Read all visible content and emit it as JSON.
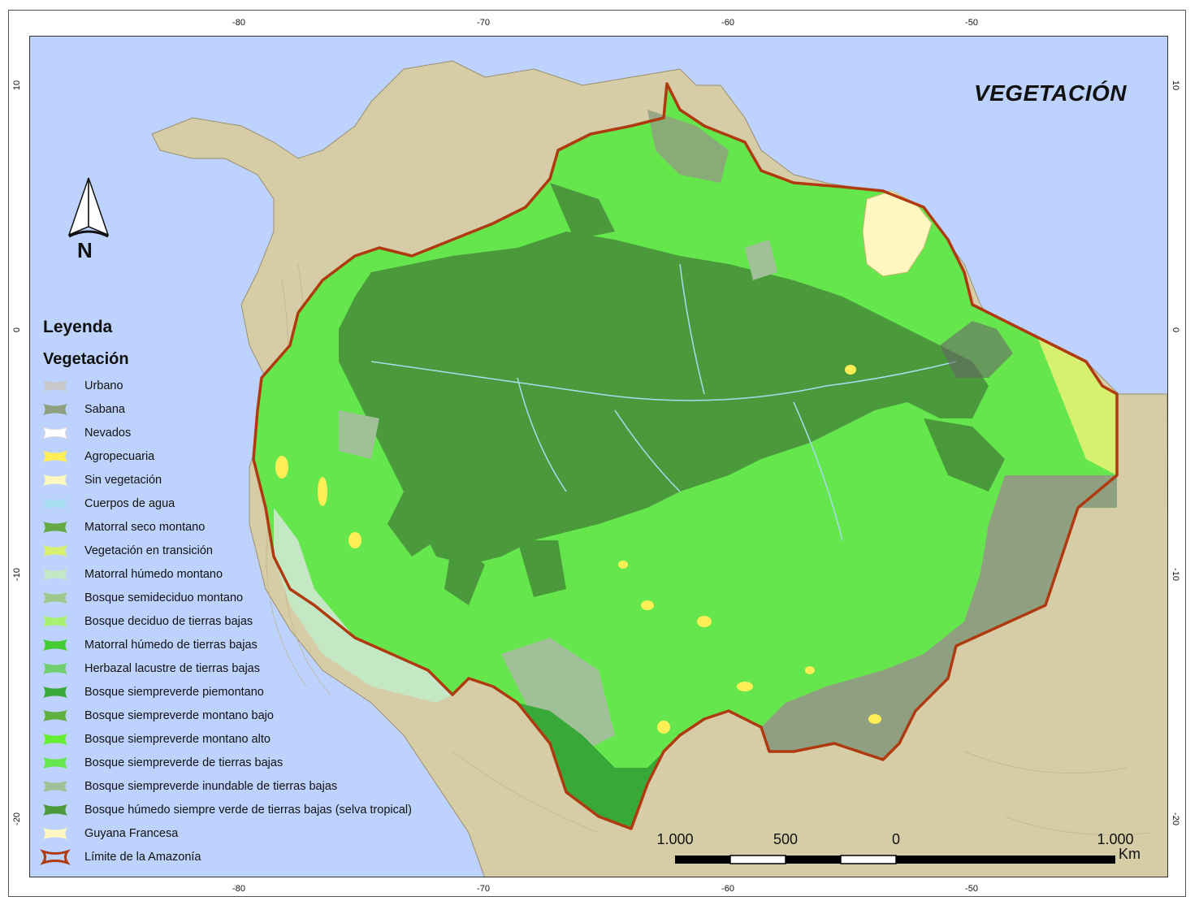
{
  "title": "VEGETACIÓN",
  "north_label": "N",
  "graticule": {
    "top": [
      "-80",
      "-70",
      "-60",
      "-50"
    ],
    "bottom": [
      "-80",
      "-70",
      "-60",
      "-50"
    ],
    "left": [
      "10",
      "0",
      "-10",
      "-20"
    ],
    "right": [
      "10",
      "0",
      "-10",
      "-20"
    ]
  },
  "legend": {
    "heading": "Leyenda",
    "subheading": "Vegetación",
    "items": [
      {
        "label": "Urbano",
        "color": "#c8c8c8"
      },
      {
        "label": "Sabana",
        "color": "#8fa080"
      },
      {
        "label": "Nevados",
        "color": "#ffffff"
      },
      {
        "label": "Agropecuaria",
        "color": "#ffee55"
      },
      {
        "label": "Sin vegetación",
        "color": "#fff8c0"
      },
      {
        "label": "Cuerpos de agua",
        "color": "#a8dcf0"
      },
      {
        "label": "Matorral seco montano",
        "color": "#66a844"
      },
      {
        "label": "Vegetación en transición",
        "color": "#d8f070"
      },
      {
        "label": "Matorral húmedo montano",
        "color": "#c4e8c4"
      },
      {
        "label": "Bosque semideciduo montano",
        "color": "#9cc88c"
      },
      {
        "label": "Bosque deciduo de tierras bajas",
        "color": "#a8f070"
      },
      {
        "label": "Matorral húmedo de tierras bajas",
        "color": "#44cc33"
      },
      {
        "label": "Herbazal lacustre de tierras bajas",
        "color": "#70d070"
      },
      {
        "label": "Bosque siempreverde piemontano",
        "color": "#38a838"
      },
      {
        "label": "Bosque siempreverde montano bajo",
        "color": "#60b040"
      },
      {
        "label": "Bosque siempreverde montano alto",
        "color": "#66ee33"
      },
      {
        "label": "Bosque siempreverde de tierras bajas",
        "color": "#66e64d"
      },
      {
        "label": "Bosque siempreverde inundable de tierras bajas",
        "color": "#a0c098"
      },
      {
        "label": "Bosque húmedo siempre verde de tierras bajas (selva tropical)",
        "color": "#4a9a3c"
      },
      {
        "label": "Guyana Francesa",
        "color": "#fff6c0"
      },
      {
        "label": "Límite de la Amazonía",
        "color": "#b03a10"
      }
    ]
  },
  "scale_bar": {
    "labels": [
      "1.000",
      "500",
      "0",
      "1.000"
    ],
    "unit": "Km"
  },
  "colors": {
    "ocean": "#bdd2fc",
    "land": "#d6cca6",
    "boundary": "#b03a10",
    "dense_forest": "#4a9a3c",
    "lowland_forest": "#66e64d",
    "savanna": "#8fa080"
  }
}
